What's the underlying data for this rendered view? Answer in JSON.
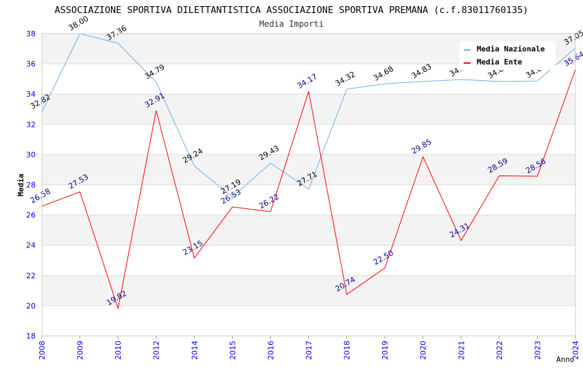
{
  "chart_data": {
    "type": "line",
    "title": "ASSOCIAZIONE SPORTIVA DILETTANTISTICA ASSOCIAZIONE SPORTIVA PREMANA (c.f.83011760135)",
    "subtitle": "Media Importi",
    "xlabel": "Anno",
    "ylabel": "Media",
    "ylim": [
      18,
      38
    ],
    "yticks": [
      "18",
      "20",
      "22",
      "24",
      "26",
      "28",
      "30",
      "32",
      "34",
      "36",
      "38"
    ],
    "categories": [
      "2008",
      "2009",
      "2010",
      "2012",
      "2014",
      "2015",
      "2016",
      "2017",
      "2018",
      "2019",
      "2020",
      "2021",
      "2022",
      "2023",
      "2024"
    ],
    "legend_position": "top-right",
    "series": [
      {
        "name": "Media Nazionale",
        "color": "#6aaff0",
        "label_color": "#000000",
        "values": [
          32.82,
          38.0,
          37.36,
          34.79,
          29.24,
          27.19,
          29.43,
          27.71,
          34.32,
          34.68,
          34.83,
          34.96,
          34.83,
          34.86,
          37.05
        ],
        "labels": [
          "32.82",
          "38.00",
          "37.36",
          "34.79",
          "29.24",
          "27.19",
          "29.43",
          "27.71",
          "34.32",
          "34.68",
          "34.83",
          "34.96",
          "34.83",
          "34.86",
          "37.05"
        ]
      },
      {
        "name": "Media Ente",
        "color": "#ff0000",
        "label_color": "#00008b",
        "values": [
          26.58,
          27.53,
          19.82,
          32.91,
          23.15,
          26.53,
          26.22,
          34.17,
          20.74,
          22.5,
          29.85,
          24.31,
          28.59,
          28.56,
          35.64
        ],
        "labels": [
          "26.58",
          "27.53",
          "19.82",
          "32.91",
          "23.15",
          "26.53",
          "26.22",
          "34.17",
          "20.74",
          "22.50",
          "29.85",
          "24.31",
          "28.59",
          "28.56",
          "35.64"
        ]
      }
    ]
  }
}
